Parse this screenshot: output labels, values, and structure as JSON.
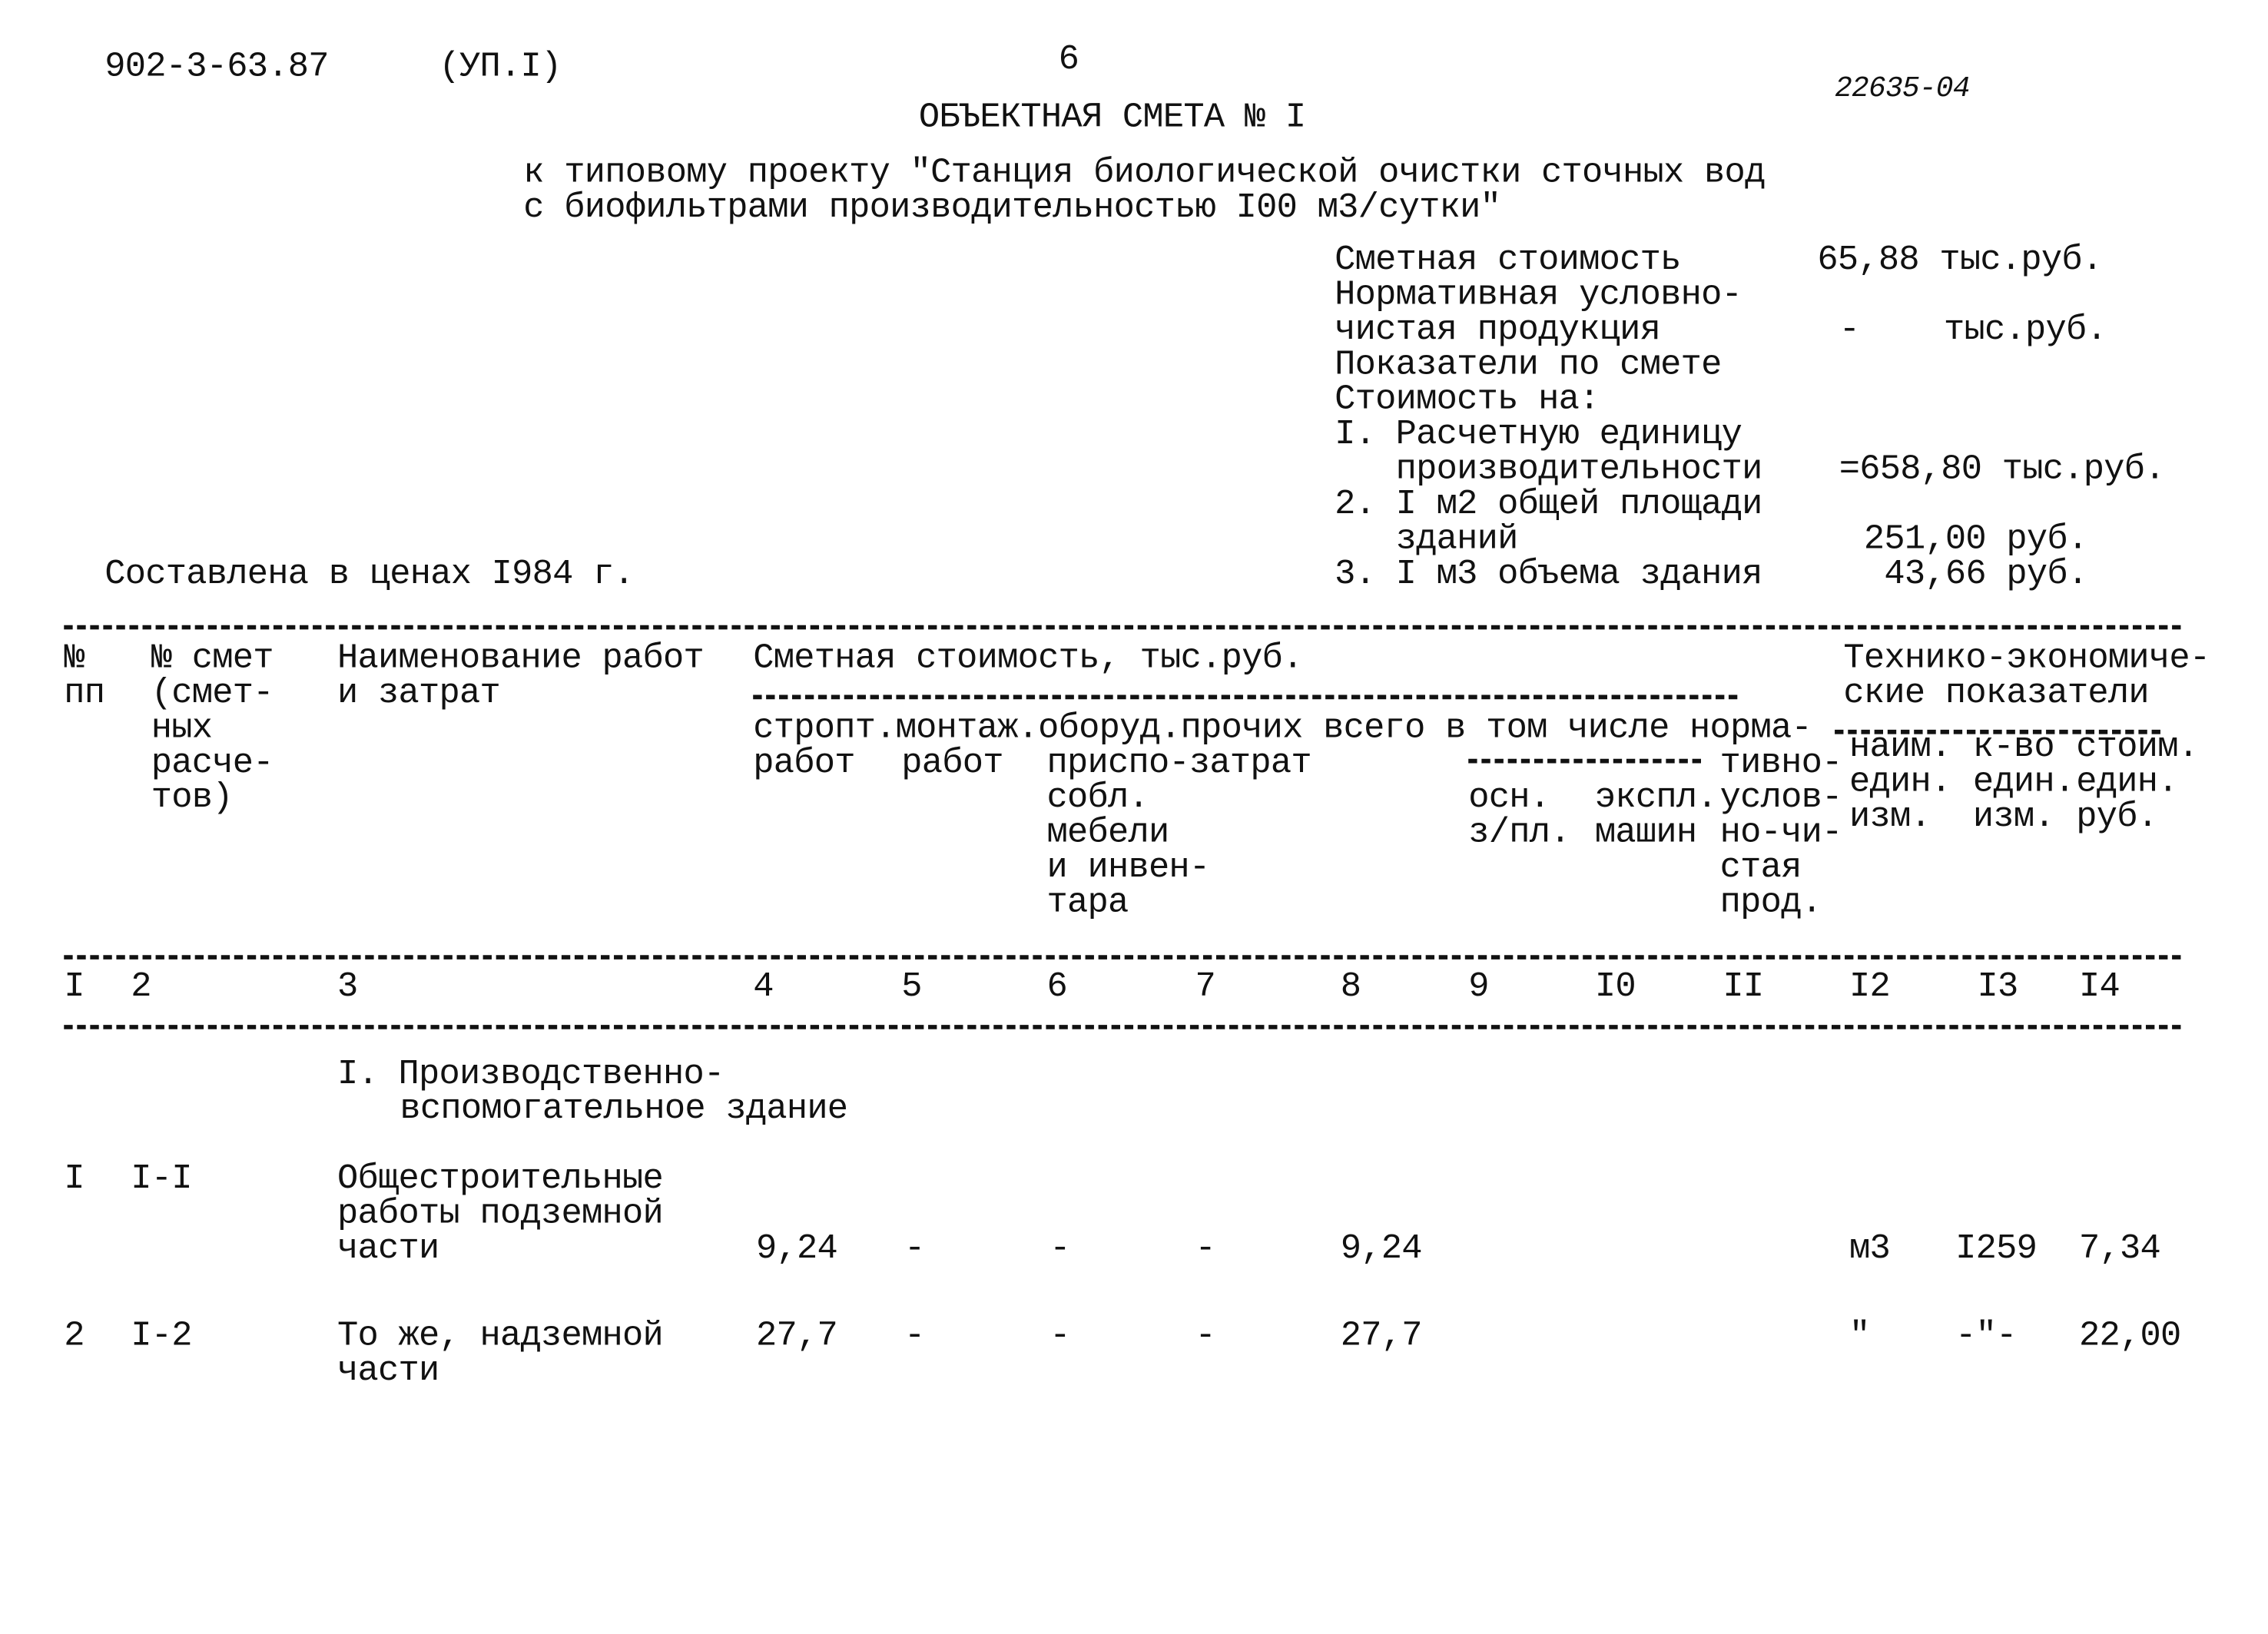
{
  "header": {
    "code": "902-3-63.87",
    "edition": "(УП.I)",
    "page_number": "6",
    "stamp": "22635-04",
    "title": "ОБЪЕКТНАЯ СМЕТА № I",
    "subtitle_line1": "к типовому проекту \"Станция биологической очистки сточных вод",
    "subtitle_line2": "с биофильтрами производительностью I00 м3/сутки\""
  },
  "summary": {
    "cost_label": "Сметная стоимость",
    "cost_value": "65,88 тыс.руб.",
    "normative_label1": "Нормативная условно-",
    "normative_label2": "чистая продукция",
    "normative_value": "-",
    "normative_unit": "тыс.руб.",
    "indicators_label": "Показатели по смете",
    "cost_per_label": "Стоимость на:",
    "item1_line1": "I. Расчетную единицу",
    "item1_line2": "   производительности",
    "item1_value": "=658,80 тыс.руб.",
    "item2_line1": "2. I м2 общей площади",
    "item2_line2": "   зданий",
    "item2_value": "251,00 руб.",
    "item3_line1": "3. I м3 объема здания",
    "item3_value": "43,66 руб.",
    "prices_note": "Составлена в ценах I984 г."
  },
  "table": {
    "h_num": [
      "№",
      "пп"
    ],
    "h_est": [
      "№ смет",
      "(смет-",
      "ных",
      "расче-",
      "тов)"
    ],
    "h_name": [
      "Наименование работ",
      "и затрат"
    ],
    "h_cost": "Сметная стоимость, тыс.руб.",
    "h_tech": [
      "Технико-экономиче-",
      "ские показатели"
    ],
    "h_row1": "стропт.монтаж.оборуд.прочих всего в том числе норма-",
    "h_c4b": "работ",
    "h_c5b": "работ",
    "h_c6": [
      "приспо-затрат",
      "собл.",
      "мебели",
      "и инвен-",
      "тара"
    ],
    "h_c9": [
      "осн.",
      "з/пл."
    ],
    "h_c10": [
      "экспл.",
      "машин"
    ],
    "h_c11": [
      "тивно-",
      "услов-",
      "но-чи-",
      "стая",
      "прод."
    ],
    "h_c12": [
      "наим.",
      "един.",
      "изм."
    ],
    "h_c13": [
      "к-во",
      "един.",
      "изм."
    ],
    "h_c14": [
      "стоим.",
      "един.",
      "руб."
    ],
    "col_numbers": [
      "I",
      "2",
      "3",
      "4",
      "5",
      "6",
      "7",
      "8",
      "9",
      "I0",
      "II",
      "I2",
      "I3",
      "I4"
    ],
    "section": [
      "I. Производственно-",
      "вспомогательное здание"
    ],
    "rows": [
      {
        "num": "I",
        "est": "I-I",
        "name": [
          "Общестроительные",
          "работы подземной",
          "части"
        ],
        "c4": "9,24",
        "c5": "-",
        "c6": "-",
        "c7": "-",
        "c8": "9,24",
        "c12": "м3",
        "c13": "I259",
        "c14": "7,34"
      },
      {
        "num": "2",
        "est": "I-2",
        "name": [
          "То же, надземной",
          "части"
        ],
        "c4": "27,7",
        "c5": "-",
        "c6": "-",
        "c7": "-",
        "c8": "27,7",
        "c12": "\"",
        "c13": "-\"-",
        "c14": "22,00"
      }
    ]
  }
}
